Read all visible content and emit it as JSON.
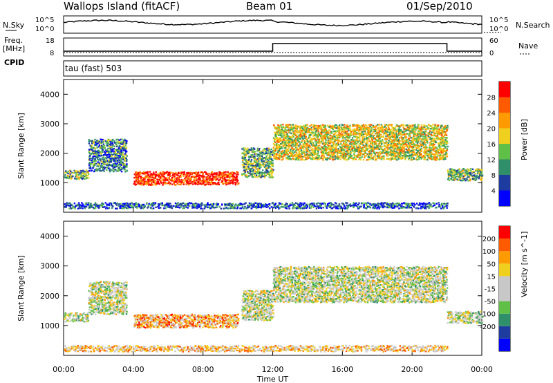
{
  "header": {
    "title": "Wallops Island (fitACF)",
    "beam": "Beam 01",
    "date": "01/Sep/2010"
  },
  "panels": {
    "nsky_label": "N.Sky",
    "nsearch_label": "N.Search",
    "freq_label_1": "Freq.",
    "freq_label_2": "[MHz]",
    "nave_label": "Nave",
    "cpid_label": "CPID",
    "cpid_value": "tau (fast) 503",
    "nsky_ticks": [
      "10^5",
      "10^0"
    ],
    "nsearch_ticks": [
      "10^5",
      "10^0"
    ],
    "freq_ticks": [
      "18",
      "8"
    ],
    "nave_ticks": [
      "60",
      "0"
    ]
  },
  "colors": {
    "power_scale": [
      "#0000ff",
      "#1e3ca0",
      "#2f8f6b",
      "#5fbf46",
      "#f0d01e",
      "#ff9a00",
      "#ff5a00",
      "#ff0000"
    ],
    "velocity_scale": [
      "#ff0000",
      "#ff5a00",
      "#ff9a00",
      "#f0d01e",
      "#c8c8c8",
      "#c8c8c8",
      "#5fbf46",
      "#2f8f6b",
      "#1e3ca0",
      "#0000ff"
    ]
  },
  "chart_data": [
    {
      "type": "heatmap",
      "name": "power",
      "xlabel": "",
      "ylabel": "Slant Range [km]",
      "xlim": [
        "00:00",
        "00:00"
      ],
      "x_ticks": [
        "00:00",
        "04:00",
        "08:00",
        "12:00",
        "16:00",
        "20:00",
        "00:00"
      ],
      "ylim": [
        0,
        4500
      ],
      "y_ticks": [
        1000,
        2000,
        3000,
        4000
      ],
      "colorbar_label": "Power [dB]",
      "colorbar_ticks": [
        4,
        8,
        12,
        16,
        20,
        24,
        28
      ],
      "regions": [
        {
          "t0": 0.0,
          "t1": 1.4,
          "r0": 1150,
          "r1": 1450,
          "level": 0.4
        },
        {
          "t0": 1.4,
          "t1": 3.6,
          "r0": 1400,
          "r1": 2500,
          "level": 0.3
        },
        {
          "t0": 4.0,
          "t1": 10.0,
          "r0": 950,
          "r1": 1400,
          "level": 0.9
        },
        {
          "t0": 10.2,
          "t1": 12.0,
          "r0": 1200,
          "r1": 2200,
          "level": 0.4
        },
        {
          "t0": 12.0,
          "t1": 22.0,
          "r0": 1800,
          "r1": 3000,
          "level": 0.55
        },
        {
          "t0": 22.0,
          "t1": 24.0,
          "r0": 1100,
          "r1": 1500,
          "level": 0.4
        },
        {
          "t0": 0.0,
          "t1": 22.0,
          "r0": 150,
          "r1": 350,
          "level": 0.2
        }
      ]
    },
    {
      "type": "heatmap",
      "name": "velocity",
      "xlabel": "Time UT",
      "ylabel": "Slant Range [km]",
      "xlim": [
        "00:00",
        "00:00"
      ],
      "x_ticks": [
        "00:00",
        "04:00",
        "08:00",
        "12:00",
        "16:00",
        "20:00",
        "00:00"
      ],
      "ylim": [
        0,
        4500
      ],
      "y_ticks": [
        1000,
        2000,
        3000,
        4000
      ],
      "colorbar_label": "Velocity [m s^-1]",
      "colorbar_ticks": [
        200,
        100,
        50,
        15,
        -15,
        -50,
        -100,
        -200
      ],
      "regions": [
        {
          "t0": 0.0,
          "t1": 1.4,
          "r0": 1150,
          "r1": 1450,
          "level": 0.5
        },
        {
          "t0": 1.4,
          "t1": 3.6,
          "r0": 1400,
          "r1": 2500,
          "level": 0.5
        },
        {
          "t0": 4.0,
          "t1": 10.0,
          "r0": 950,
          "r1": 1400,
          "level": 0.3
        },
        {
          "t0": 10.2,
          "t1": 12.0,
          "r0": 1200,
          "r1": 2200,
          "level": 0.5
        },
        {
          "t0": 12.0,
          "t1": 22.0,
          "r0": 1800,
          "r1": 3000,
          "level": 0.5
        },
        {
          "t0": 22.0,
          "t1": 24.0,
          "r0": 1100,
          "r1": 1500,
          "level": 0.5
        },
        {
          "t0": 0.0,
          "t1": 22.0,
          "r0": 150,
          "r1": 350,
          "level": 0.35
        }
      ]
    }
  ]
}
